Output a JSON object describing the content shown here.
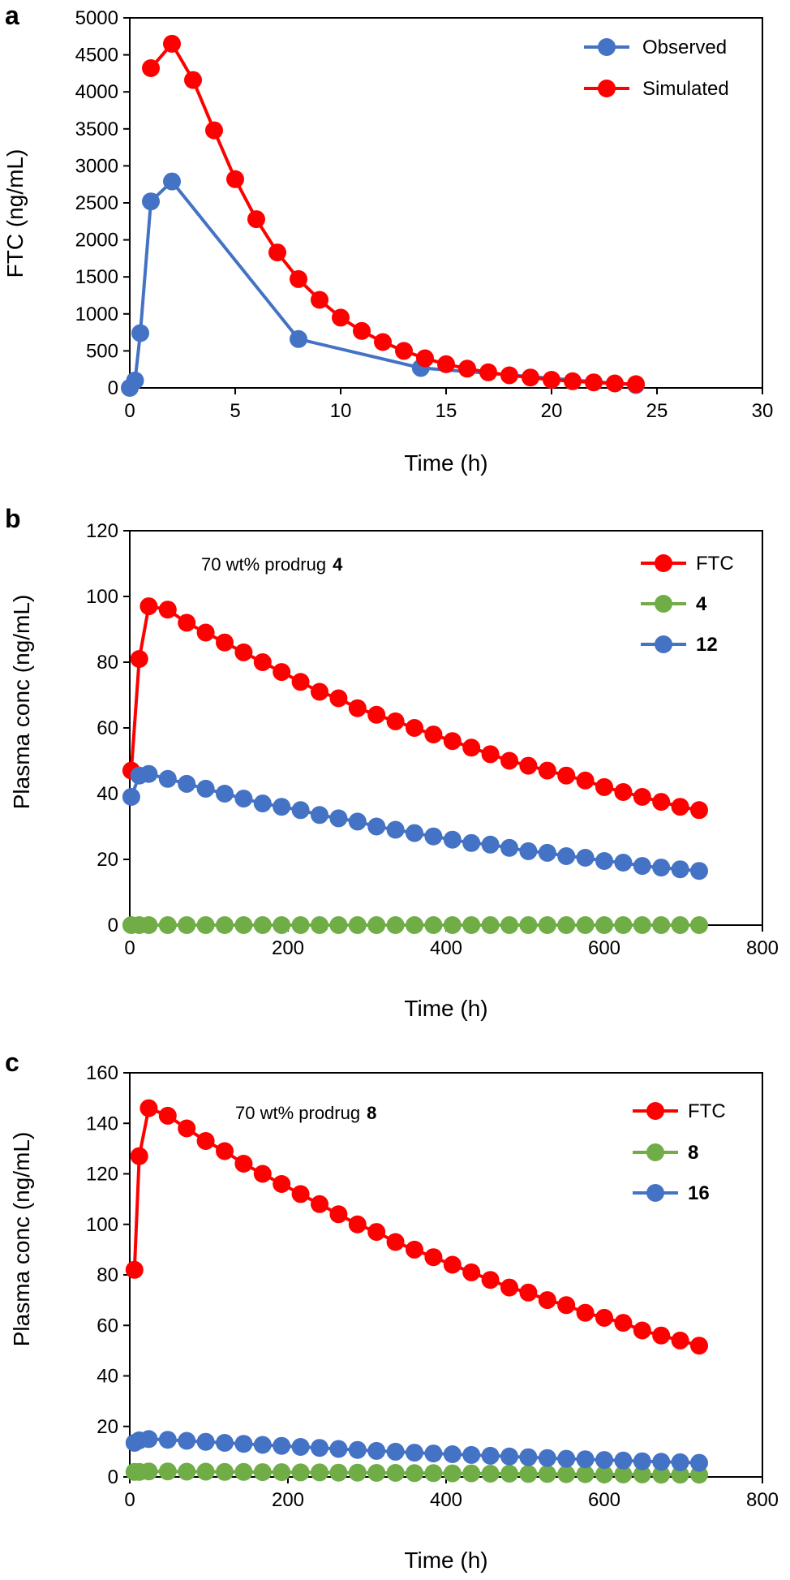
{
  "figure": {
    "title": ""
  },
  "chart_data": [
    {
      "type": "line",
      "panel_label": "a",
      "xlabel": "Time (h)",
      "ylabel": "FTC (ng/mL)",
      "xlim": [
        0,
        30
      ],
      "ylim": [
        0,
        5000
      ],
      "xticks": [
        0,
        5,
        10,
        15,
        20,
        25,
        30
      ],
      "yticks": [
        0,
        500,
        1000,
        1500,
        2000,
        2500,
        3000,
        3500,
        4000,
        4500,
        5000
      ],
      "annotation": "",
      "legend_position": "top-right",
      "colors": {
        "Observed": "#4472C4",
        "Simulated": "#FF0000"
      },
      "series": [
        {
          "name": "Observed",
          "x": [
            0,
            0.25,
            0.5,
            1,
            2,
            8,
            13.8,
            24
          ],
          "y": [
            0,
            100,
            740,
            2520,
            2790,
            660,
            270,
            40
          ]
        },
        {
          "name": "Simulated",
          "x": [
            1,
            2,
            3,
            4,
            5,
            6,
            7,
            8,
            9,
            10,
            11,
            12,
            13,
            14,
            15,
            16,
            17,
            18,
            19,
            20,
            21,
            22,
            23,
            24
          ],
          "y": [
            4320,
            4650,
            4160,
            3480,
            2820,
            2280,
            1830,
            1470,
            1190,
            950,
            770,
            620,
            500,
            400,
            320,
            260,
            210,
            170,
            140,
            110,
            90,
            75,
            60,
            50
          ]
        }
      ]
    },
    {
      "type": "line",
      "panel_label": "b",
      "xlabel": "Time (h)",
      "ylabel": "Plasma conc (ng/mL)",
      "xlim": [
        0,
        800
      ],
      "ylim": [
        0,
        120
      ],
      "xticks": [
        0,
        200,
        400,
        600,
        800
      ],
      "yticks": [
        0,
        20,
        40,
        60,
        80,
        100,
        120
      ],
      "annotation": "70 wt% prodrug",
      "annotation_bold": "4",
      "legend_position": "top-right",
      "colors": {
        "FTC": "#FF0000",
        "4": "#70AD47",
        "12": "#4472C4"
      },
      "series": [
        {
          "name": "FTC",
          "x": [
            2,
            12,
            24,
            48,
            72,
            96,
            120,
            144,
            168,
            192,
            216,
            240,
            264,
            288,
            312,
            336,
            360,
            384,
            408,
            432,
            456,
            480,
            504,
            528,
            552,
            576,
            600,
            624,
            648,
            672,
            696,
            720
          ],
          "y": [
            47,
            81,
            97,
            96,
            92,
            89,
            86,
            83,
            80,
            77,
            74,
            71,
            69,
            66,
            64,
            62,
            60,
            58,
            56,
            54,
            52,
            50,
            48.5,
            47,
            45.5,
            44,
            42,
            40.5,
            39,
            37.5,
            36,
            35
          ]
        },
        {
          "name": "4",
          "x": [
            2,
            12,
            24,
            48,
            72,
            96,
            120,
            144,
            168,
            192,
            216,
            240,
            264,
            288,
            312,
            336,
            360,
            384,
            408,
            432,
            456,
            480,
            504,
            528,
            552,
            576,
            600,
            624,
            648,
            672,
            696,
            720
          ],
          "y": [
            0,
            0,
            0,
            0,
            0,
            0,
            0,
            0,
            0,
            0,
            0,
            0,
            0,
            0,
            0,
            0,
            0,
            0,
            0,
            0,
            0,
            0,
            0,
            0,
            0,
            0,
            0,
            0,
            0,
            0,
            0,
            0
          ]
        },
        {
          "name": "12",
          "x": [
            2,
            12,
            24,
            48,
            72,
            96,
            120,
            144,
            168,
            192,
            216,
            240,
            264,
            288,
            312,
            336,
            360,
            384,
            408,
            432,
            456,
            480,
            504,
            528,
            552,
            576,
            600,
            624,
            648,
            672,
            696,
            720
          ],
          "y": [
            39,
            45.5,
            46,
            44.5,
            43,
            41.5,
            40,
            38.5,
            37,
            36,
            35,
            33.5,
            32.5,
            31.5,
            30,
            29,
            28,
            27,
            26,
            25,
            24.5,
            23.5,
            22.5,
            22,
            21,
            20.5,
            19.5,
            19,
            18,
            17.5,
            17,
            16.5
          ]
        }
      ]
    },
    {
      "type": "line",
      "panel_label": "c",
      "xlabel": "Time (h)",
      "ylabel": "Plasma conc (ng/mL)",
      "xlim": [
        0,
        800
      ],
      "ylim": [
        0,
        160
      ],
      "xticks": [
        0,
        200,
        400,
        600,
        800
      ],
      "yticks": [
        0,
        20,
        40,
        60,
        80,
        100,
        120,
        140,
        160
      ],
      "annotation": "70 wt% prodrug",
      "annotation_bold": "8",
      "legend_position": "top-right",
      "colors": {
        "FTC": "#FF0000",
        "8": "#70AD47",
        "16": "#4472C4"
      },
      "series": [
        {
          "name": "FTC",
          "x": [
            6,
            12,
            24,
            48,
            72,
            96,
            120,
            144,
            168,
            192,
            216,
            240,
            264,
            288,
            312,
            336,
            360,
            384,
            408,
            432,
            456,
            480,
            504,
            528,
            552,
            576,
            600,
            624,
            648,
            672,
            696,
            720
          ],
          "y": [
            82,
            127,
            146,
            143,
            138,
            133,
            129,
            124,
            120,
            116,
            112,
            108,
            104,
            100,
            97,
            93,
            90,
            87,
            84,
            81,
            78,
            75,
            73,
            70,
            68,
            65,
            63,
            61,
            58,
            56,
            54,
            52
          ]
        },
        {
          "name": "8",
          "x": [
            6,
            12,
            24,
            48,
            72,
            96,
            120,
            144,
            168,
            192,
            216,
            240,
            264,
            288,
            312,
            336,
            360,
            384,
            408,
            432,
            456,
            480,
            504,
            528,
            552,
            576,
            600,
            624,
            648,
            672,
            696,
            720
          ],
          "y": [
            2,
            2,
            2.2,
            2.2,
            2.1,
            2.1,
            2,
            2,
            1.9,
            1.9,
            1.8,
            1.8,
            1.7,
            1.7,
            1.6,
            1.6,
            1.5,
            1.5,
            1.4,
            1.4,
            1.3,
            1.3,
            1.2,
            1.2,
            1.1,
            1.1,
            1,
            1,
            1,
            0.9,
            0.9,
            0.9
          ]
        },
        {
          "name": "16",
          "x": [
            6,
            12,
            24,
            48,
            72,
            96,
            120,
            144,
            168,
            192,
            216,
            240,
            264,
            288,
            312,
            336,
            360,
            384,
            408,
            432,
            456,
            480,
            504,
            528,
            552,
            576,
            600,
            624,
            648,
            672,
            696,
            720
          ],
          "y": [
            13.5,
            14.5,
            15,
            14.7,
            14.3,
            13.9,
            13.5,
            13.1,
            12.7,
            12.3,
            11.9,
            11.5,
            11.1,
            10.7,
            10.3,
            10,
            9.6,
            9.3,
            9,
            8.7,
            8.4,
            8.1,
            7.8,
            7.5,
            7.2,
            7,
            6.7,
            6.5,
            6.2,
            6,
            5.8,
            5.6
          ]
        }
      ]
    }
  ]
}
